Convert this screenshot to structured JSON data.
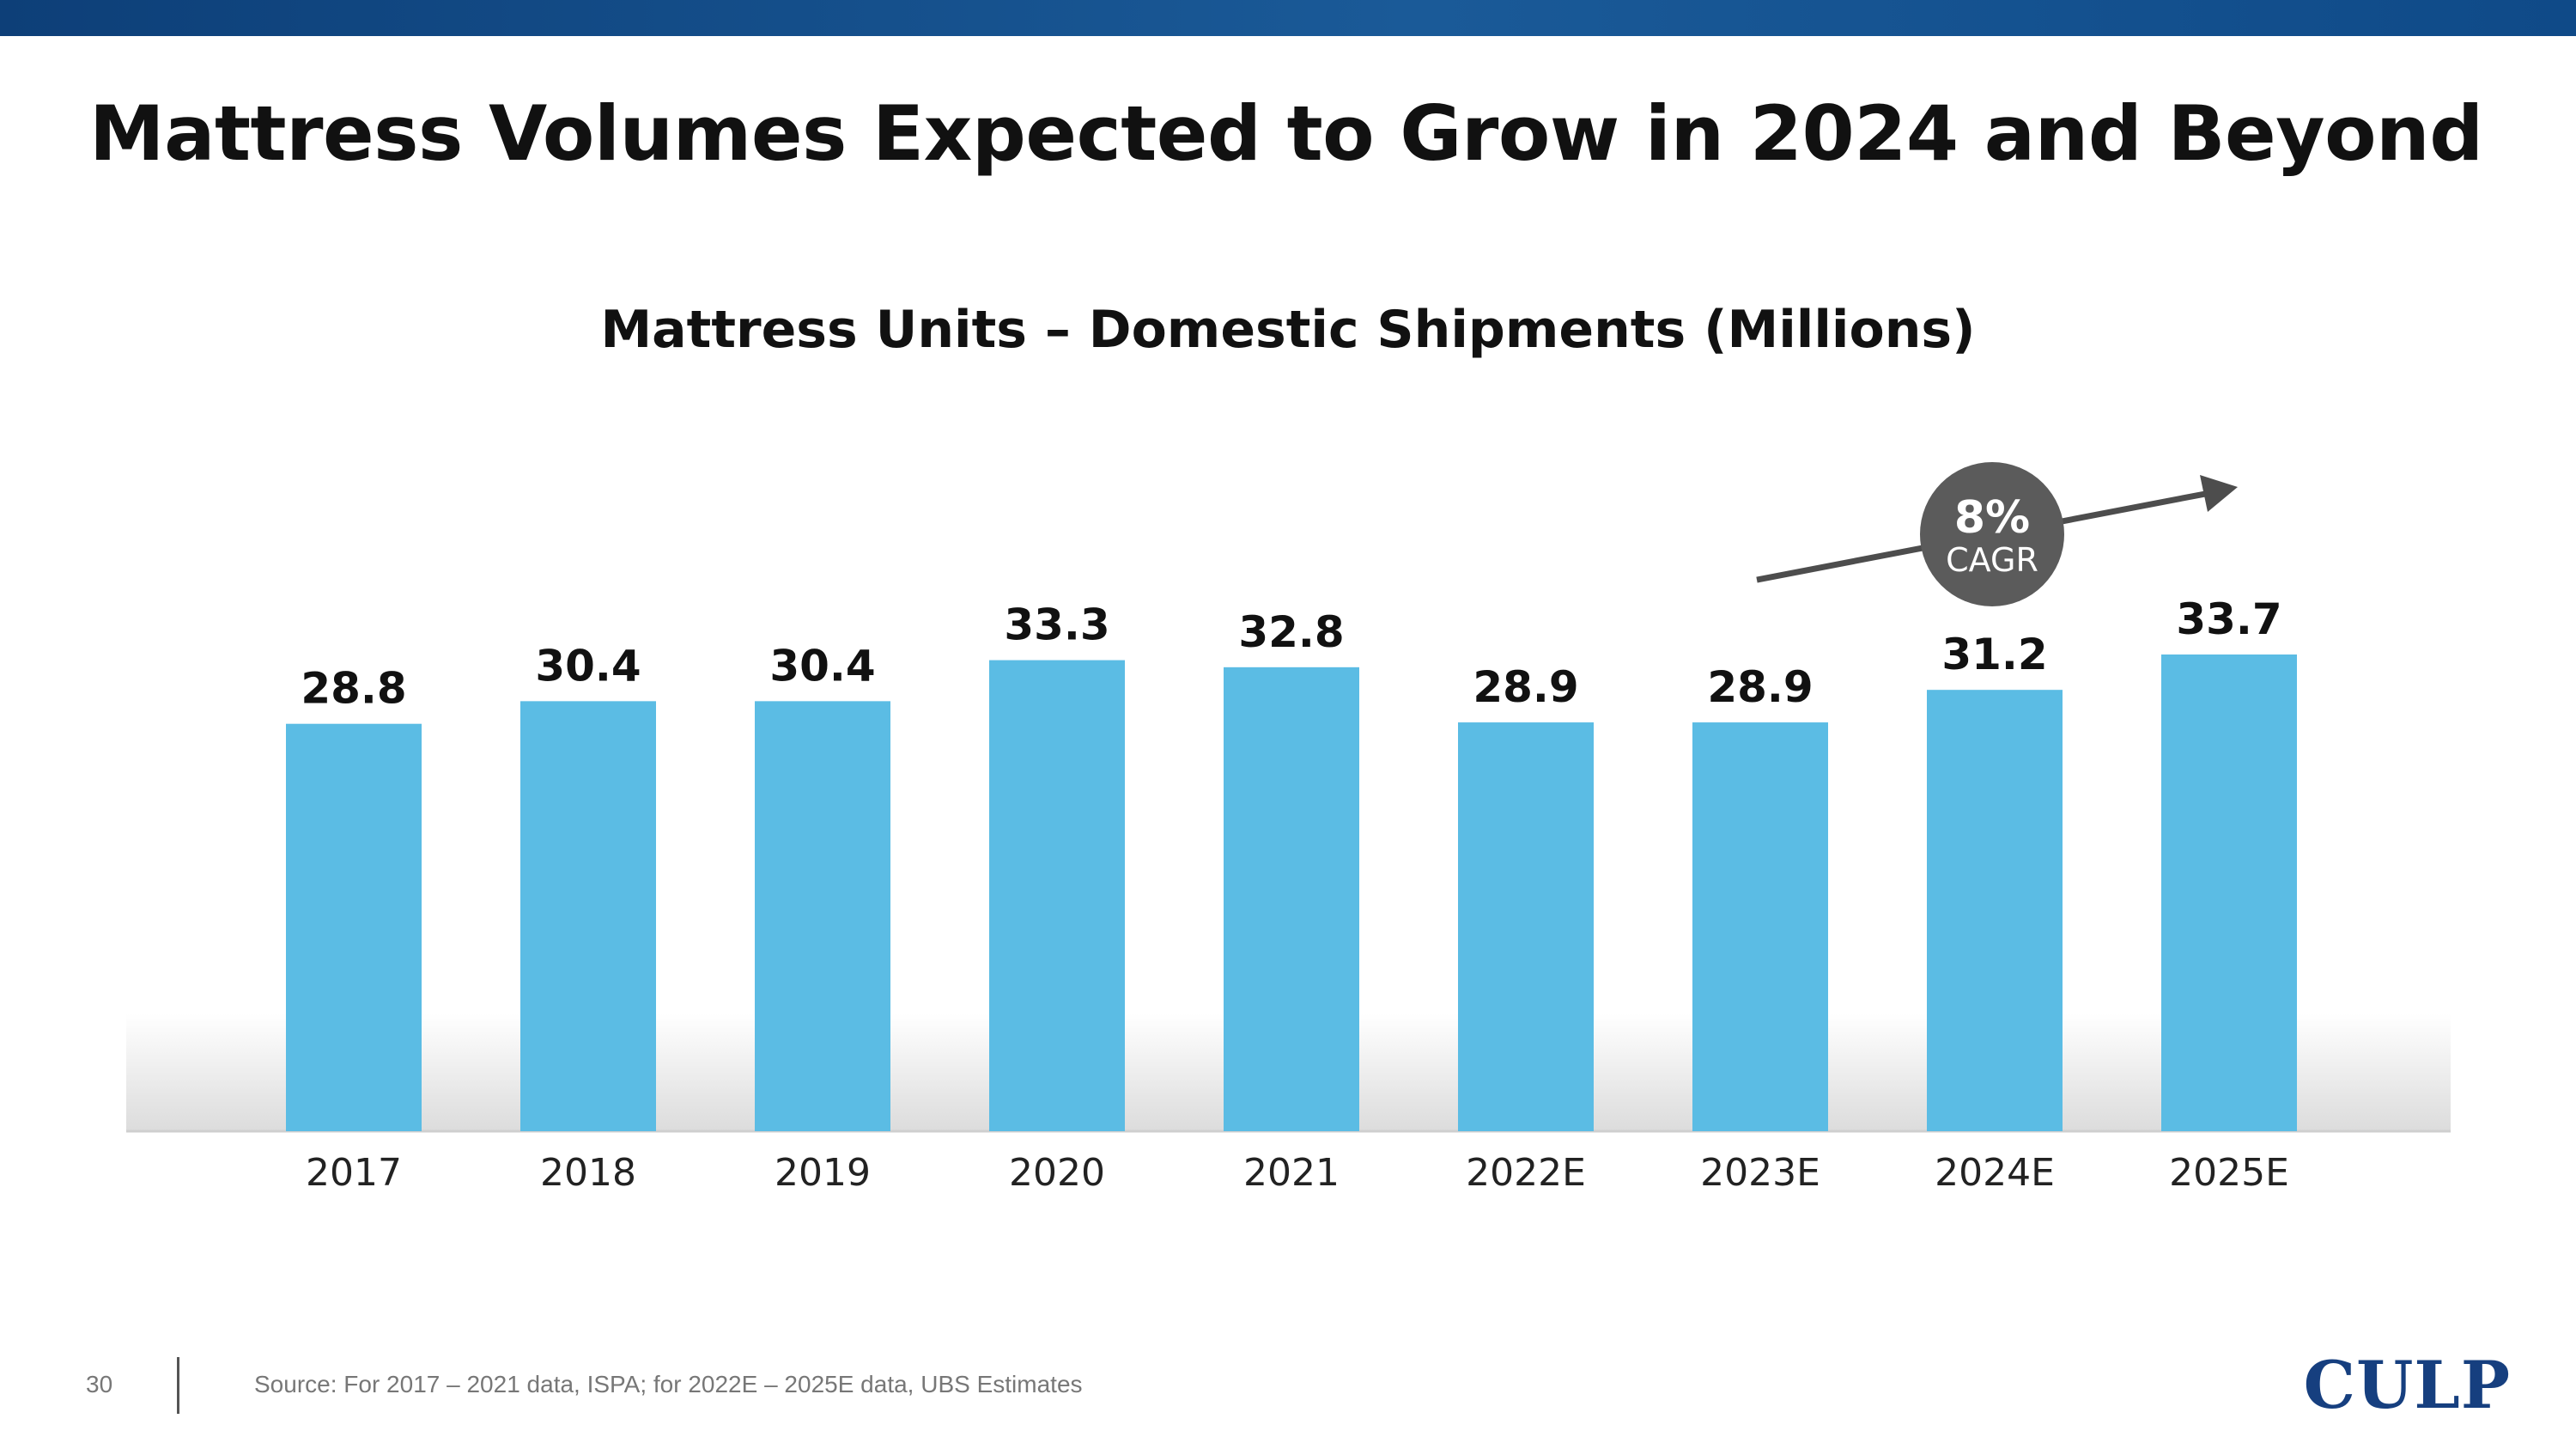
{
  "slide": {
    "title": "Mattress Volumes Expected to Grow in 2024 and Beyond",
    "page_number": "30",
    "source": "Source: For 2017 – 2021 data, ISPA; for 2022E – 2025E data, UBS Estimates",
    "logo_text": "CULP"
  },
  "chart_data": {
    "type": "bar",
    "title": "Mattress Units – Domestic Shipments (Millions)",
    "xlabel": "",
    "ylabel": "",
    "categories": [
      "2017",
      "2018",
      "2019",
      "2020",
      "2021",
      "2022E",
      "2023E",
      "2024E",
      "2025E"
    ],
    "values": [
      28.8,
      30.4,
      30.4,
      33.3,
      32.8,
      28.9,
      28.9,
      31.2,
      33.7
    ],
    "data_labels": [
      "28.8",
      "30.4",
      "30.4",
      "33.3",
      "32.8",
      "28.9",
      "28.9",
      "31.2",
      "33.7"
    ],
    "grid": false,
    "legend": "none",
    "annotation": {
      "value": "8%",
      "label": "CAGR",
      "arrow": "rising trend arrow over 2023E–2025E"
    },
    "colors": {
      "bar": "#5bbce4",
      "annotation_circle": "#5b5b5b",
      "arrow": "#4d4d4d"
    }
  }
}
